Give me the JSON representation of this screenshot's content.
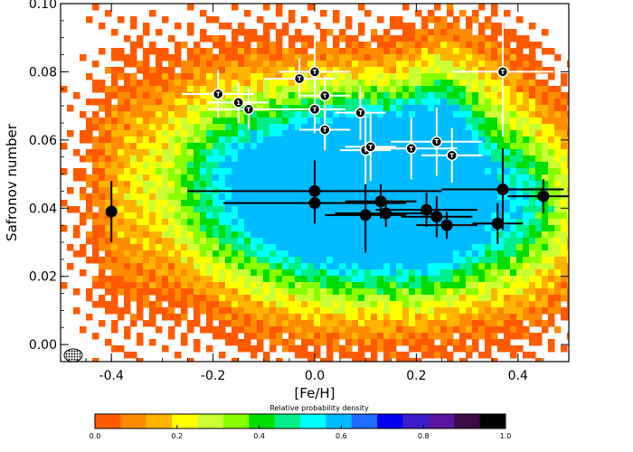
{
  "chart_data": {
    "type": "scatter",
    "background": "density-contour",
    "xlabel": "[Fe/H]",
    "ylabel": "Safronov number",
    "xlim": [
      -0.5,
      0.5
    ],
    "ylim": [
      -0.005,
      0.1
    ],
    "xticks": [
      "-0.4",
      "-0.2",
      "0.0",
      "0.2",
      "0.4"
    ],
    "xtick_values": [
      -0.4,
      -0.2,
      0.0,
      0.2,
      0.4
    ],
    "yticks": [
      "0.00",
      "0.02",
      "0.04",
      "0.06",
      "0.08",
      "0.10"
    ],
    "ytick_values": [
      0.0,
      0.02,
      0.04,
      0.06,
      0.08,
      0.1
    ],
    "colorbar": {
      "title": "Relative probability density",
      "range": [
        0.0,
        1.0
      ],
      "tick_labels": [
        "0.0",
        "0.2",
        "0.4",
        "0.6",
        "0.8",
        "1.0"
      ],
      "tick_values": [
        0.0,
        0.2,
        0.4,
        0.6,
        0.8,
        1.0
      ],
      "colors": [
        "#ff5a00",
        "#ff8c00",
        "#ffb400",
        "#ffff00",
        "#ccff33",
        "#88ff00",
        "#00dd00",
        "#00ee88",
        "#00ffff",
        "#00bbff",
        "#1f6cff",
        "#0000ee",
        "#3c1ec8",
        "#5a14a0",
        "#3c0a46",
        "#000000"
      ]
    },
    "density_blobs": [
      {
        "x": 0.18,
        "y": 0.04,
        "sx": 0.22,
        "sy": 0.02,
        "w": 1.0
      },
      {
        "x": 0.25,
        "y": 0.06,
        "sx": 0.05,
        "sy": 0.02,
        "w": 0.4
      },
      {
        "x": 0.25,
        "y": 0.043,
        "sx": 0.03,
        "sy": 0.004,
        "w": 0.45
      },
      {
        "x": 0.1,
        "y": 0.06,
        "sx": 0.12,
        "sy": 0.015,
        "w": 0.3
      },
      {
        "x": -0.05,
        "y": 0.045,
        "sx": 0.18,
        "sy": 0.022,
        "w": 0.45
      },
      {
        "x": -0.2,
        "y": 0.055,
        "sx": 0.1,
        "sy": 0.02,
        "w": 0.25
      },
      {
        "x": -0.38,
        "y": 0.045,
        "sx": 0.05,
        "sy": 0.03,
        "w": 0.15
      },
      {
        "x": 0.42,
        "y": 0.045,
        "sx": 0.06,
        "sy": 0.02,
        "w": 0.18
      },
      {
        "x": 0.35,
        "y": 0.08,
        "sx": 0.05,
        "sy": 0.012,
        "w": 0.12
      }
    ],
    "series": [
      {
        "name": "black-points",
        "marker": "filled-circle",
        "color": "#000000",
        "points": [
          {
            "x": -0.4,
            "y": 0.039,
            "xerr": 0.0,
            "yerr": 0.009
          },
          {
            "x": 0.0,
            "y": 0.045,
            "xerr": 0.25,
            "yerr": 0.009
          },
          {
            "x": 0.0,
            "y": 0.0415,
            "xerr": 0.18,
            "yerr": 0.006
          },
          {
            "x": 0.1,
            "y": 0.038,
            "xerr": 0.08,
            "yerr": 0.011
          },
          {
            "x": 0.13,
            "y": 0.042,
            "xerr": 0.07,
            "yerr": 0.005
          },
          {
            "x": 0.14,
            "y": 0.0385,
            "xerr": 0.1,
            "yerr": 0.004
          },
          {
            "x": 0.22,
            "y": 0.0395,
            "xerr": 0.1,
            "yerr": 0.005
          },
          {
            "x": 0.24,
            "y": 0.0375,
            "xerr": 0.07,
            "yerr": 0.006
          },
          {
            "x": 0.26,
            "y": 0.035,
            "xerr": 0.06,
            "yerr": 0.004
          },
          {
            "x": 0.36,
            "y": 0.0355,
            "xerr": 0.05,
            "yerr": 0.006
          },
          {
            "x": 0.37,
            "y": 0.0455,
            "xerr": 0.12,
            "yerr": 0.012
          },
          {
            "x": 0.45,
            "y": 0.0435,
            "xerr": 0.07,
            "yerr": 0.005
          }
        ]
      },
      {
        "name": "labelled-points",
        "marker": "open-circle",
        "color": "#ffffff",
        "points": [
          {
            "x": -0.19,
            "y": 0.0735,
            "xerr": 0.07,
            "yerr": 0.007,
            "label": "T"
          },
          {
            "x": -0.15,
            "y": 0.071,
            "xerr": 0.06,
            "yerr": 0.006,
            "label": "1"
          },
          {
            "x": -0.13,
            "y": 0.069,
            "xerr": 0.08,
            "yerr": 0.006,
            "label": "T"
          },
          {
            "x": -0.03,
            "y": 0.078,
            "xerr": 0.07,
            "yerr": 0.006,
            "label": "T"
          },
          {
            "x": 0.0,
            "y": 0.08,
            "xerr": 0.07,
            "yerr": 0.014,
            "label": "T"
          },
          {
            "x": 0.0,
            "y": 0.069,
            "xerr": 0.06,
            "yerr": 0.007,
            "label": "T"
          },
          {
            "x": 0.02,
            "y": 0.073,
            "xerr": 0.05,
            "yerr": 0.006,
            "label": "T"
          },
          {
            "x": 0.02,
            "y": 0.063,
            "xerr": 0.05,
            "yerr": 0.006,
            "label": "T"
          },
          {
            "x": 0.09,
            "y": 0.068,
            "xerr": 0.05,
            "yerr": 0.008,
            "label": "T"
          },
          {
            "x": 0.1,
            "y": 0.057,
            "xerr": 0.05,
            "yerr": 0.01,
            "label": "T"
          },
          {
            "x": 0.11,
            "y": 0.058,
            "xerr": 0.05,
            "yerr": 0.01,
            "label": "T"
          },
          {
            "x": 0.19,
            "y": 0.0575,
            "xerr": 0.09,
            "yerr": 0.009,
            "label": "T"
          },
          {
            "x": 0.24,
            "y": 0.0595,
            "xerr": 0.09,
            "yerr": 0.01,
            "label": "T"
          },
          {
            "x": 0.27,
            "y": 0.0555,
            "xerr": 0.06,
            "yerr": 0.008,
            "label": "T"
          },
          {
            "x": 0.37,
            "y": 0.08,
            "xerr": 0.1,
            "yerr": 0.019,
            "label": "T"
          }
        ]
      }
    ]
  }
}
